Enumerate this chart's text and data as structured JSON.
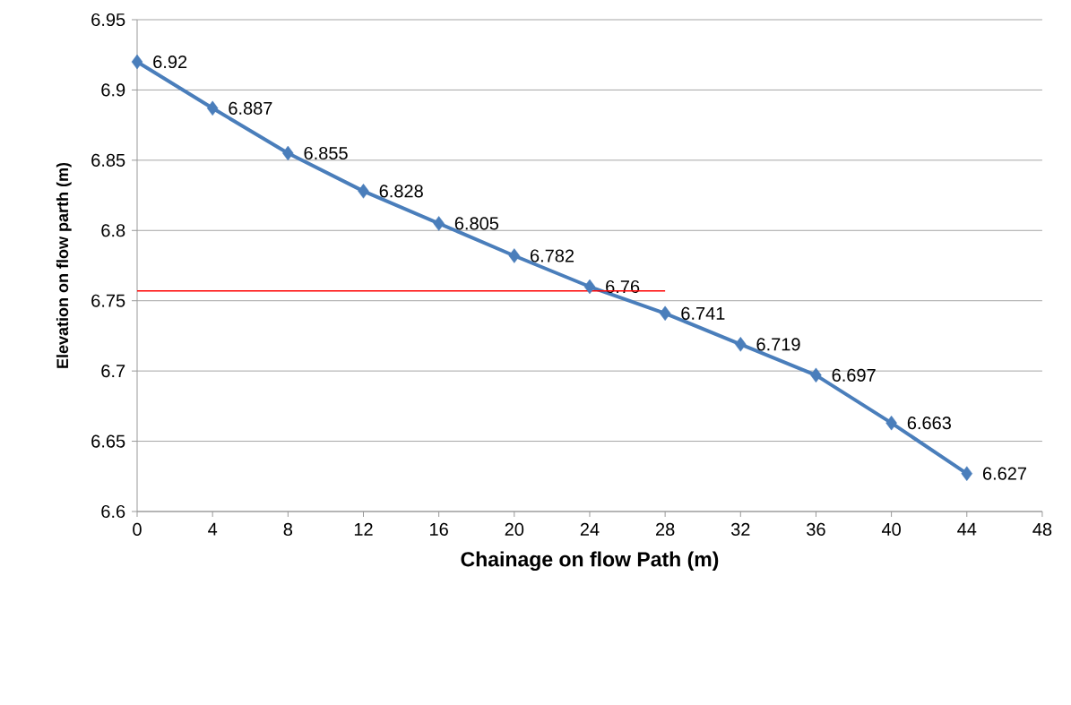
{
  "chart_data": {
    "type": "line",
    "xlabel": "Chainage on flow Path  (m)",
    "ylabel": "Elevation on flow parth  (m)",
    "xlim": [
      0,
      48
    ],
    "xticks": [
      0,
      4,
      8,
      12,
      16,
      20,
      24,
      28,
      32,
      36,
      40,
      44,
      48
    ],
    "ylim": [
      6.6,
      6.95
    ],
    "yticks": [
      6.6,
      6.65,
      6.7,
      6.75,
      6.8,
      6.85,
      6.9,
      6.95
    ],
    "grid": "y",
    "marker": "diamond",
    "line_style": "solid",
    "series": [
      {
        "color": "#4a7ebb",
        "x": [
          0,
          4,
          8,
          12,
          16,
          20,
          24,
          28,
          32,
          36,
          40,
          44
        ],
        "values": [
          6.92,
          6.887,
          6.855,
          6.828,
          6.805,
          6.782,
          6.76,
          6.741,
          6.719,
          6.697,
          6.663,
          6.627
        ],
        "value_labels": [
          "6.92",
          "6.887",
          "6.855",
          "6.828",
          "6.805",
          "6.782",
          "6.76",
          "6.741",
          "6.719",
          "6.697",
          "6.663",
          "6.627"
        ]
      },
      {
        "color": "#ff0000",
        "type": "line",
        "marker": "none",
        "x": [
          0,
          28
        ],
        "values": [
          6.757,
          6.757
        ]
      }
    ]
  }
}
